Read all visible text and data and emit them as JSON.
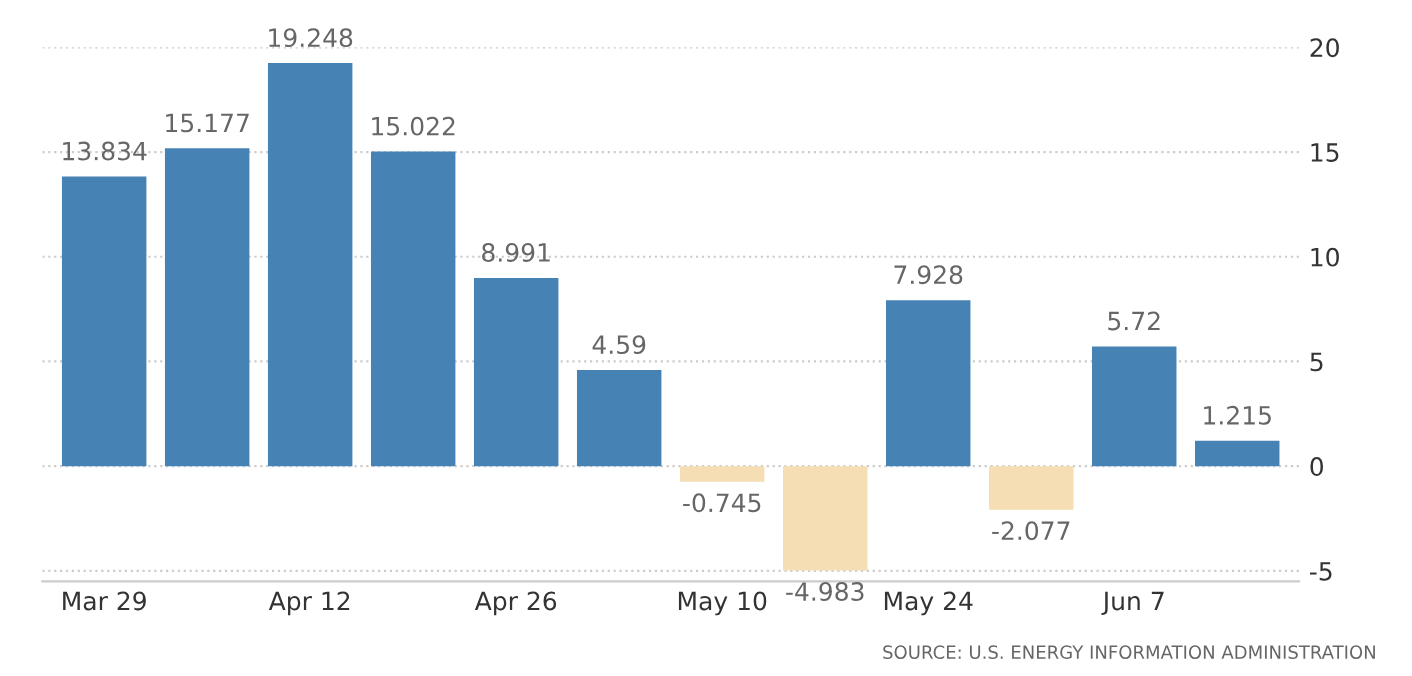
{
  "chart_data": {
    "type": "bar",
    "categories": [
      "Mar 29",
      null,
      "Apr 12",
      null,
      "Apr 26",
      null,
      "May 10",
      null,
      "May 24",
      null,
      "Jun 7",
      null
    ],
    "values": [
      13.834,
      15.177,
      19.248,
      15.022,
      8.991,
      4.59,
      -0.745,
      -4.983,
      7.928,
      -2.077,
      5.72,
      1.215
    ],
    "colors": [
      "#4682b4",
      "#4682b4",
      "#4682b4",
      "#4682b4",
      "#4682b4",
      "#4682b4",
      "#f5deb3",
      "#f5deb3",
      "#4682b4",
      "#f5deb3",
      "#4682b4",
      "#4682b4"
    ],
    "value_labels": [
      "13.834",
      "15.177",
      "19.248",
      "15.022",
      "8.991",
      "4.59",
      "-0.745",
      "-4.983",
      "7.928",
      "-2.077",
      "5.72",
      "1.215"
    ],
    "ylim": [
      -5.5,
      20
    ],
    "yticks": [
      -5,
      0,
      5,
      10,
      15,
      20
    ],
    "grid": "y",
    "legend": false,
    "annotations": [
      "SOURCE: U.S. ENERGY INFORMATION ADMINISTRATION"
    ]
  }
}
